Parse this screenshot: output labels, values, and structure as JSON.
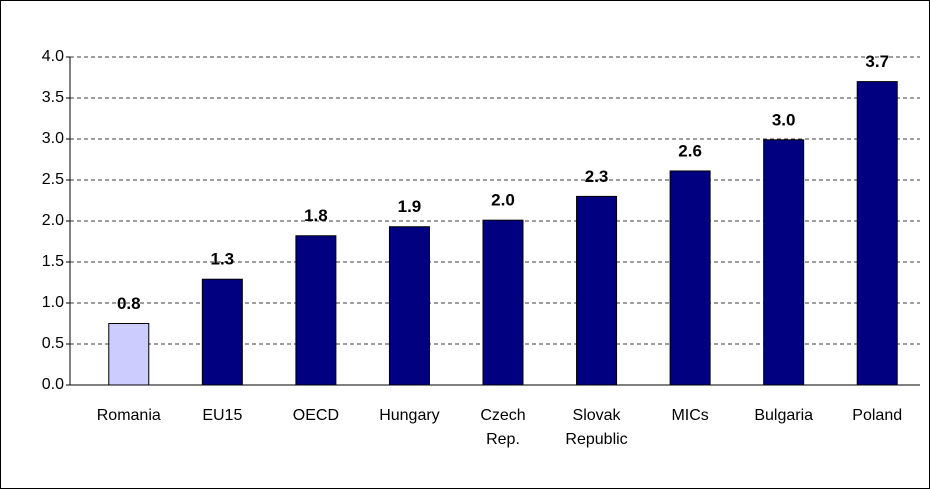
{
  "chart_data": {
    "type": "bar",
    "categories": [
      "Romania",
      "EU15",
      "OECD",
      "Hungary",
      "Czech\nRep.",
      "Slovak\nRepublic",
      "MICs",
      "Bulgaria",
      "Poland"
    ],
    "values": [
      0.75,
      1.29,
      1.82,
      1.93,
      2.01,
      2.3,
      2.61,
      2.99,
      3.7
    ],
    "value_labels": [
      "0.8",
      "1.3",
      "1.8",
      "1.9",
      "2.0",
      "2.3",
      "2.6",
      "3.0",
      "3.7"
    ],
    "colors": [
      "#ccccff",
      "#000080",
      "#000080",
      "#000080",
      "#000080",
      "#000080",
      "#000080",
      "#000080",
      "#000080"
    ],
    "ylim": [
      0,
      4
    ],
    "yticks": [
      {
        "value": 0,
        "label": "0.0"
      },
      0.5,
      {
        "value": 1,
        "label": "1.0"
      },
      1.5,
      {
        "value": 2,
        "label": "2.0"
      },
      2.5,
      {
        "value": 3,
        "label": "3.0"
      },
      3.5,
      {
        "value": 4,
        "label": "4.0"
      }
    ],
    "grid": true
  }
}
